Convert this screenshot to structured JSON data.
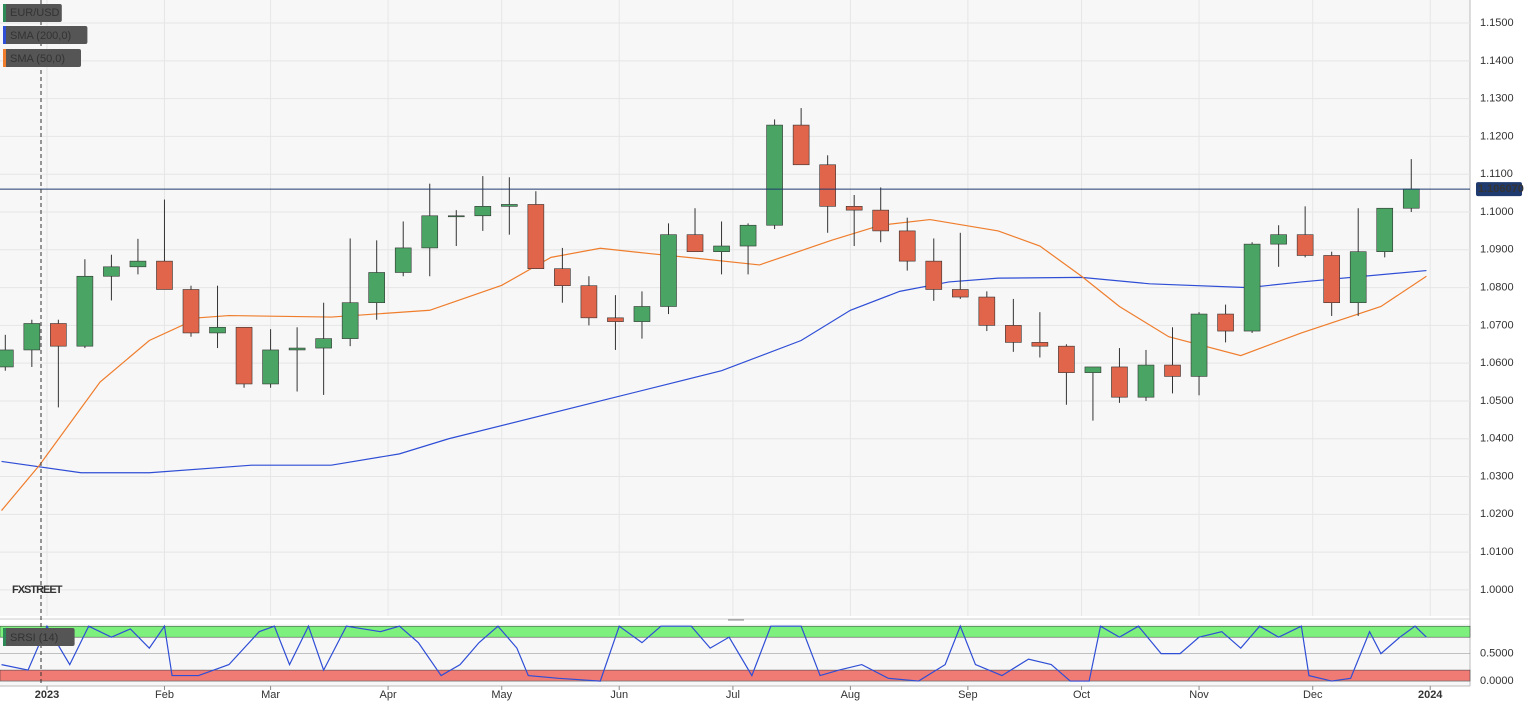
{
  "chart_data": [
    {
      "type": "candlestick",
      "title": "EUR/USD",
      "watermark": "FXSTREET",
      "xlim": [
        -12.4,
        375.5
      ],
      "ylim": [
        0.9931,
        1.1561
      ],
      "yticks": [
        {
          "value": 1.15,
          "label": "1.1500"
        },
        {
          "value": 1.14,
          "label": "1.1400"
        },
        {
          "value": 1.13,
          "label": "1.1300"
        },
        {
          "value": 1.12,
          "label": "1.1200"
        },
        {
          "value": 1.11,
          "label": "1.1100"
        },
        {
          "value": 1.1,
          "label": "1.1000"
        },
        {
          "value": 1.09,
          "label": "1.0900"
        },
        {
          "value": 1.08,
          "label": "1.0800"
        },
        {
          "value": 1.07,
          "label": "1.0700"
        },
        {
          "value": 1.06,
          "label": "1.0600"
        },
        {
          "value": 1.05,
          "label": "1.0500"
        },
        {
          "value": 1.04,
          "label": "1.0400"
        },
        {
          "value": 1.03,
          "label": "1.0300"
        },
        {
          "value": 1.02,
          "label": "1.0200"
        },
        {
          "value": 1.01,
          "label": "1.0100"
        },
        {
          "value": 1.0,
          "label": "1.0000"
        }
      ],
      "grid": true,
      "up_color": "#4aa564",
      "down_color": "#e0654a",
      "last_price": {
        "value": 1.10607,
        "label": "1.106070",
        "color": "#1f3a6e"
      },
      "x": [
        -11,
        -4,
        3,
        10,
        17,
        24,
        31,
        38,
        45,
        52,
        59,
        66,
        73,
        80,
        87,
        94,
        101,
        108,
        115,
        122,
        129,
        136,
        143,
        150,
        157,
        164,
        171,
        178,
        185,
        192,
        199,
        206,
        213,
        220,
        227,
        234,
        241,
        248,
        255,
        262,
        269,
        276,
        283,
        290,
        297,
        304,
        311,
        318,
        325,
        332,
        339,
        346,
        353,
        360
      ],
      "open": [
        1.059,
        1.0635,
        1.0705,
        1.0645,
        1.083,
        1.0855,
        1.087,
        1.0795,
        1.068,
        1.0695,
        1.0545,
        1.0635,
        1.064,
        1.0665,
        1.076,
        1.084,
        1.0905,
        1.099,
        1.099,
        1.1015,
        1.102,
        1.085,
        1.0805,
        1.072,
        1.071,
        1.075,
        1.094,
        1.0895,
        1.091,
        1.0965,
        1.123,
        1.1125,
        1.1015,
        1.1005,
        1.095,
        1.087,
        1.0795,
        1.0775,
        1.07,
        1.0655,
        1.0645,
        1.0575,
        1.059,
        1.051,
        1.0595,
        1.0565,
        1.073,
        1.0685,
        1.0915,
        1.094,
        1.0885,
        1.076,
        1.0895,
        1.101
      ],
      "high": [
        1.0675,
        1.0715,
        1.0715,
        1.0875,
        1.0887,
        1.0929,
        1.1033,
        1.0805,
        1.0805,
        1.0695,
        1.069,
        1.0695,
        1.076,
        1.093,
        1.0925,
        1.0975,
        1.1075,
        1.1005,
        1.1095,
        1.1092,
        1.1055,
        1.0905,
        1.083,
        1.078,
        1.079,
        1.097,
        1.101,
        1.0975,
        1.097,
        1.1245,
        1.1275,
        1.115,
        1.1045,
        1.1065,
        1.0985,
        1.093,
        1.0945,
        1.079,
        1.077,
        1.0735,
        1.065,
        1.059,
        1.064,
        1.0635,
        1.0695,
        1.0735,
        1.0755,
        1.092,
        1.0965,
        1.1015,
        1.0895,
        1.101,
        1.101,
        1.114
      ],
      "low": [
        1.058,
        1.059,
        1.0483,
        1.064,
        1.0766,
        1.0835,
        1.0795,
        1.067,
        1.064,
        1.0535,
        1.0535,
        1.0525,
        1.0516,
        1.0645,
        1.0715,
        1.083,
        1.083,
        1.091,
        1.095,
        1.094,
        1.085,
        1.076,
        1.07,
        1.0635,
        1.0665,
        1.073,
        1.0895,
        1.0835,
        1.0835,
        1.0955,
        1.1125,
        1.0945,
        1.091,
        1.092,
        1.0845,
        1.0765,
        1.077,
        1.0685,
        1.063,
        1.0615,
        1.049,
        1.0448,
        1.0495,
        1.05,
        1.052,
        1.0515,
        1.0655,
        1.068,
        1.0855,
        1.088,
        1.0725,
        1.0725,
        1.088,
        1.1
      ],
      "close": [
        1.0635,
        1.0705,
        1.0645,
        1.083,
        1.0855,
        1.087,
        1.0795,
        1.068,
        1.0695,
        1.0545,
        1.0635,
        1.064,
        1.0665,
        1.076,
        1.084,
        1.0905,
        1.099,
        1.099,
        1.1015,
        1.102,
        1.085,
        1.0805,
        1.072,
        1.071,
        1.075,
        1.094,
        1.0895,
        1.091,
        1.0965,
        1.123,
        1.1125,
        1.1015,
        1.1005,
        1.095,
        1.087,
        1.0795,
        1.0775,
        1.07,
        1.0655,
        1.0645,
        1.0575,
        1.059,
        1.051,
        1.0595,
        1.0565,
        1.073,
        1.0685,
        1.0915,
        1.094,
        1.0885,
        1.076,
        1.0895,
        1.101,
        1.10607
      ],
      "series": [
        {
          "name": "SMA (200,0)",
          "color": "#2f4ed6",
          "x": [
            -12,
            9,
            27,
            54,
            75,
            93,
            106,
            146,
            178,
            199,
            212,
            225,
            238,
            251,
            273,
            291,
            317,
            331,
            364
          ],
          "values": [
            1.034,
            1.031,
            1.031,
            1.033,
            1.033,
            1.036,
            1.04,
            1.05,
            1.058,
            1.066,
            1.074,
            1.079,
            1.0815,
            1.0825,
            1.0827,
            1.081,
            1.08,
            1.0815,
            1.0845
          ]
        },
        {
          "name": "SMA (50,0)",
          "color": "#ef7d2c",
          "x": [
            -12,
            -2,
            14,
            27,
            40,
            48,
            75,
            101,
            120,
            133,
            146,
            159,
            172,
            188,
            207,
            220,
            233,
            251,
            262,
            273,
            283,
            296,
            315,
            331,
            352,
            364
          ],
          "values": [
            1.021,
            1.033,
            1.055,
            1.066,
            1.072,
            1.0726,
            1.0722,
            1.074,
            1.0806,
            1.088,
            1.0904,
            1.089,
            1.0877,
            1.086,
            1.0925,
            1.0965,
            1.098,
            1.095,
            1.091,
            1.083,
            1.075,
            1.067,
            1.062,
            1.068,
            1.075,
            1.083
          ]
        }
      ]
    },
    {
      "type": "line",
      "title": "SRSI (14)",
      "xlim": [
        -12.4,
        375.5
      ],
      "ylim": [
        -0.09,
        1.04
      ],
      "yticks": [
        {
          "value": 0.5,
          "label": "0.5000"
        },
        {
          "value": 0,
          "label": "0.0000"
        }
      ],
      "bands": [
        {
          "from": 0.8,
          "to": 1,
          "color": "#7ef07e"
        },
        {
          "from": 0,
          "to": 0.2,
          "color": "#f07a74"
        }
      ],
      "xticks": [
        {
          "value": 0,
          "label": "2023"
        },
        {
          "value": 31,
          "label": "Feb"
        },
        {
          "value": 59,
          "label": "Mar"
        },
        {
          "value": 90,
          "label": "Apr"
        },
        {
          "value": 120,
          "label": "May"
        },
        {
          "value": 151,
          "label": "Jun"
        },
        {
          "value": 181,
          "label": "Jul"
        },
        {
          "value": 212,
          "label": "Aug"
        },
        {
          "value": 243,
          "label": "Sep"
        },
        {
          "value": 273,
          "label": "Oct"
        },
        {
          "value": 304,
          "label": "Nov"
        },
        {
          "value": 334,
          "label": "Dec"
        },
        {
          "value": 365,
          "label": "2024"
        }
      ],
      "series": [
        {
          "name": "SRSI (14)",
          "color": "#2f4ed6",
          "x": [
            -12,
            -5,
            0,
            6,
            11,
            17,
            22,
            27,
            31,
            33,
            40,
            48,
            56,
            60,
            64,
            69,
            73,
            79,
            88,
            93,
            98,
            104,
            109,
            114,
            119,
            124,
            127,
            135,
            146,
            151,
            157,
            162,
            170,
            175,
            180,
            186,
            191,
            199,
            204,
            209,
            215,
            222,
            230,
            237,
            241,
            245,
            252,
            259,
            265,
            270,
            275,
            278,
            283,
            288,
            294,
            299,
            304,
            310,
            315,
            320,
            325,
            331,
            333,
            339,
            344,
            349,
            352,
            357,
            361,
            364
          ],
          "values": [
            0.3,
            0.2,
            1.0,
            0.3,
            1.0,
            0.8,
            0.95,
            0.6,
            1.0,
            0.1,
            0.1,
            0.3,
            0.9,
            1.0,
            0.3,
            1.0,
            0.2,
            1.0,
            0.9,
            1.0,
            0.7,
            0.1,
            0.3,
            0.7,
            1.0,
            0.6,
            0.1,
            0.05,
            0.0,
            1.0,
            0.7,
            1.0,
            1.0,
            0.6,
            0.8,
            0.1,
            1.0,
            1.0,
            0.1,
            0.2,
            0.3,
            0.05,
            0.0,
            0.3,
            1.0,
            0.3,
            0.1,
            0.4,
            0.3,
            0.0,
            0.0,
            1.0,
            0.8,
            1.0,
            0.5,
            0.5,
            0.8,
            0.9,
            0.6,
            1.0,
            0.8,
            1.0,
            0.1,
            0.0,
            0.05,
            0.9,
            0.5,
            0.8,
            1.0,
            0.8
          ]
        }
      ]
    }
  ]
}
